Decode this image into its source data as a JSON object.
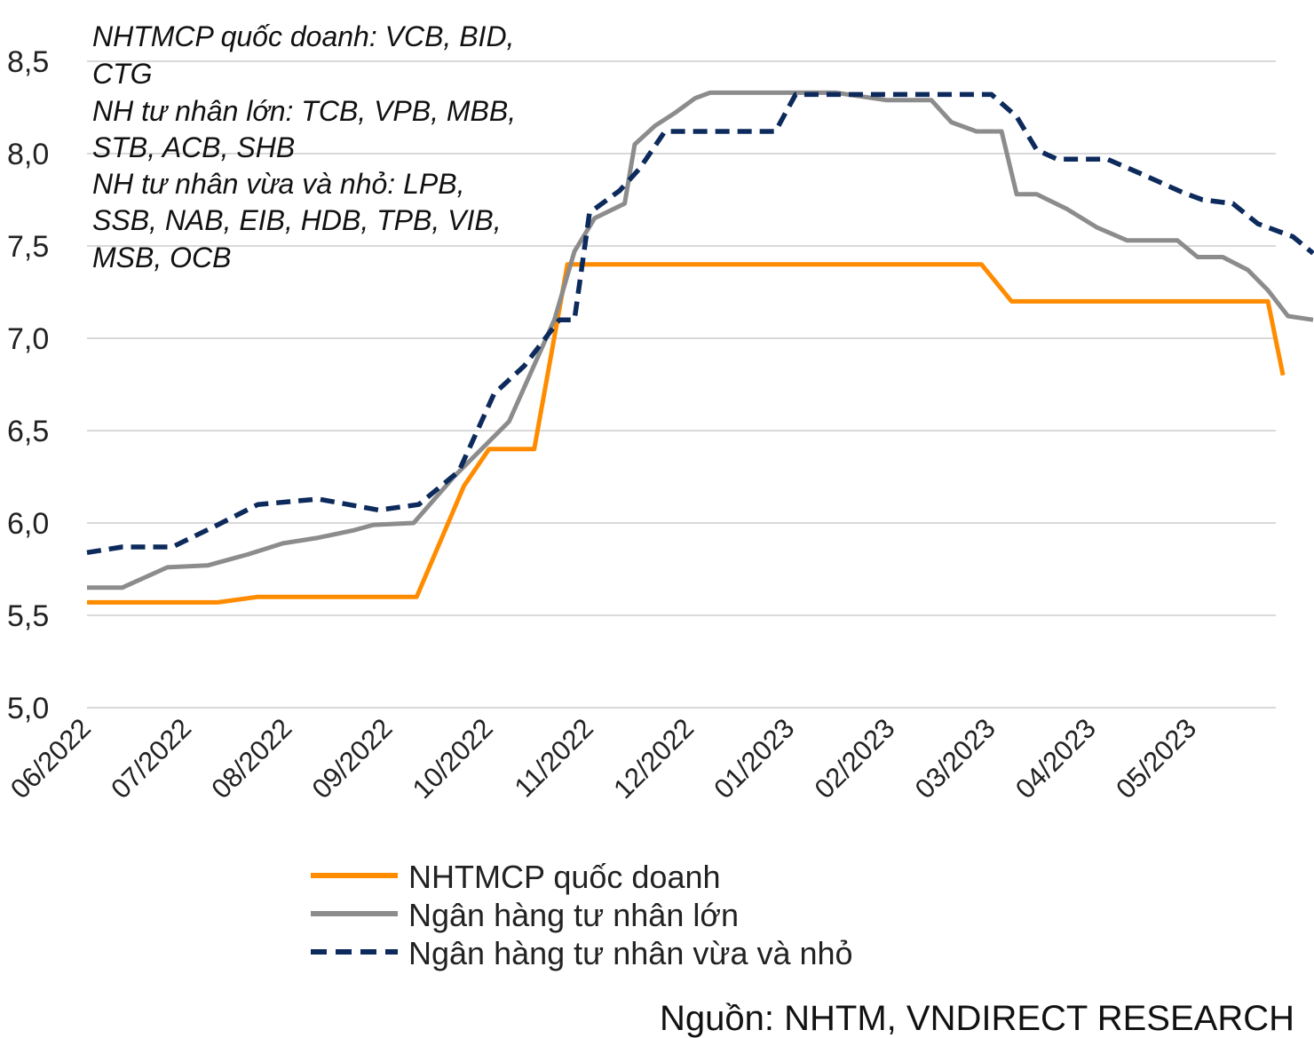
{
  "chart_data": {
    "type": "line",
    "title": "",
    "xlabel": "",
    "ylabel": "",
    "ylim": [
      5.0,
      8.5
    ],
    "y_ticks": [
      "5,0",
      "5,5",
      "6,0",
      "6,5",
      "7,0",
      "7,5",
      "8,0",
      "8,5"
    ],
    "y_tick_values": [
      5.0,
      5.5,
      6.0,
      6.5,
      7.0,
      7.5,
      8.0,
      8.5
    ],
    "x_ticks": [
      "06/2022",
      "07/2022",
      "08/2022",
      "09/2022",
      "10/2022",
      "11/2022",
      "12/2022",
      "01/2023",
      "02/2023",
      "03/2023",
      "04/2023",
      "05/2023"
    ],
    "grid": true,
    "legend_position": "bottom",
    "annotation_lines": [
      "NHTMCP quốc doanh: VCB, BID,",
      "CTG",
      "NH tư nhân lớn: TCB, VPB, MBB,",
      "STB, ACB, SHB",
      "NH tư nhân vừa và nhỏ: LPB,",
      "SSB, NAB, EIB, HDB, TPB, VIB,",
      "MSB, OCB"
    ],
    "source": "Nguồn: NHTM, VNDIRECT RESEARCH",
    "x_range": [
      0,
      11.9
    ],
    "series": [
      {
        "name": "NHTMCP quốc doanh",
        "color": "#ff8c00",
        "dash": "solid",
        "points": [
          [
            0,
            5.57
          ],
          [
            0.5,
            5.57
          ],
          [
            1,
            5.57
          ],
          [
            1.3,
            5.57
          ],
          [
            1.7,
            5.6
          ],
          [
            2,
            5.6
          ],
          [
            2.5,
            5.6
          ],
          [
            3,
            5.6
          ],
          [
            3.28,
            5.6
          ],
          [
            3.75,
            6.2
          ],
          [
            4.0,
            6.4
          ],
          [
            4.45,
            6.4
          ],
          [
            4.78,
            7.4
          ],
          [
            5,
            7.4
          ],
          [
            6,
            7.4
          ],
          [
            7,
            7.4
          ],
          [
            8,
            7.4
          ],
          [
            8.9,
            7.4
          ],
          [
            9.2,
            7.2
          ],
          [
            10,
            7.2
          ],
          [
            11,
            7.2
          ],
          [
            11.75,
            7.2
          ],
          [
            11.9,
            6.8
          ]
        ]
      },
      {
        "name": "Ngân hàng tư nhân lớn",
        "color": "#8c8c8c",
        "dash": "solid",
        "points": [
          [
            0,
            5.65
          ],
          [
            0.35,
            5.65
          ],
          [
            0.8,
            5.76
          ],
          [
            1.2,
            5.77
          ],
          [
            1.6,
            5.83
          ],
          [
            1.95,
            5.89
          ],
          [
            2.3,
            5.92
          ],
          [
            2.65,
            5.96
          ],
          [
            2.85,
            5.99
          ],
          [
            3.25,
            6.0
          ],
          [
            3.65,
            6.25
          ],
          [
            4.2,
            6.55
          ],
          [
            4.65,
            7.1
          ],
          [
            4.85,
            7.47
          ],
          [
            5.05,
            7.65
          ],
          [
            5.35,
            7.73
          ],
          [
            5.45,
            8.05
          ],
          [
            5.65,
            8.15
          ],
          [
            5.85,
            8.22
          ],
          [
            6.05,
            8.3
          ],
          [
            6.2,
            8.33
          ],
          [
            7,
            8.33
          ],
          [
            7.45,
            8.33
          ],
          [
            7.95,
            8.29
          ],
          [
            8.4,
            8.29
          ],
          [
            8.6,
            8.17
          ],
          [
            8.85,
            8.12
          ],
          [
            9.1,
            8.12
          ],
          [
            9.25,
            7.78
          ],
          [
            9.45,
            7.78
          ],
          [
            9.75,
            7.7
          ],
          [
            10.05,
            7.6
          ],
          [
            10.35,
            7.53
          ],
          [
            10.85,
            7.53
          ],
          [
            11.05,
            7.44
          ],
          [
            11.3,
            7.44
          ],
          [
            11.55,
            7.37
          ],
          [
            11.75,
            7.26
          ],
          [
            11.95,
            7.12
          ],
          [
            12.2,
            7.1
          ]
        ]
      },
      {
        "name": "Ngân hàng tư nhân vừa và nhỏ",
        "color": "#0d2a5c",
        "dash": "dashed",
        "points": [
          [
            0,
            5.84
          ],
          [
            0.35,
            5.87
          ],
          [
            0.85,
            5.87
          ],
          [
            1.3,
            5.99
          ],
          [
            1.7,
            6.1
          ],
          [
            2.3,
            6.13
          ],
          [
            2.9,
            6.07
          ],
          [
            3.3,
            6.1
          ],
          [
            3.7,
            6.28
          ],
          [
            4.05,
            6.7
          ],
          [
            4.35,
            6.85
          ],
          [
            4.7,
            7.1
          ],
          [
            4.85,
            7.1
          ],
          [
            5.0,
            7.68
          ],
          [
            5.3,
            7.8
          ],
          [
            5.5,
            7.92
          ],
          [
            5.75,
            8.12
          ],
          [
            6.85,
            8.12
          ],
          [
            7.05,
            8.32
          ],
          [
            7.6,
            8.32
          ],
          [
            8.1,
            8.32
          ],
          [
            8.6,
            8.32
          ],
          [
            9.0,
            8.32
          ],
          [
            9.25,
            8.2
          ],
          [
            9.45,
            8.02
          ],
          [
            9.65,
            7.97
          ],
          [
            10.15,
            7.97
          ],
          [
            10.45,
            7.9
          ],
          [
            10.9,
            7.79
          ],
          [
            11.1,
            7.75
          ],
          [
            11.4,
            7.73
          ],
          [
            11.65,
            7.62
          ],
          [
            12.0,
            7.55
          ],
          [
            12.2,
            7.46
          ]
        ]
      }
    ]
  }
}
